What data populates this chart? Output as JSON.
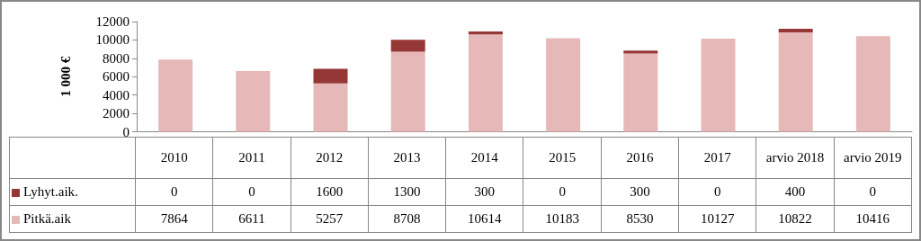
{
  "chart_data": {
    "type": "bar",
    "stacked": true,
    "ylabel": "1 000 €",
    "categories": [
      "2010",
      "2011",
      "2012",
      "2013",
      "2014",
      "2015",
      "2016",
      "2017",
      "arvio 2018",
      "arvio 2019"
    ],
    "series": [
      {
        "name": "Pitkä.aik",
        "color": "#e6b9b8",
        "values": [
          7864,
          6611,
          5257,
          8708,
          10614,
          10183,
          8530,
          10127,
          10822,
          10416
        ]
      },
      {
        "name": "Lyhyt.aik.",
        "color": "#953735",
        "values": [
          0,
          0,
          1600,
          1300,
          300,
          0,
          300,
          0,
          400,
          0
        ]
      }
    ],
    "ylim": [
      0,
      12000
    ],
    "yticks": [
      0,
      2000,
      4000,
      6000,
      8000,
      10000,
      12000
    ],
    "data_labels": true,
    "legend": "bottom"
  }
}
